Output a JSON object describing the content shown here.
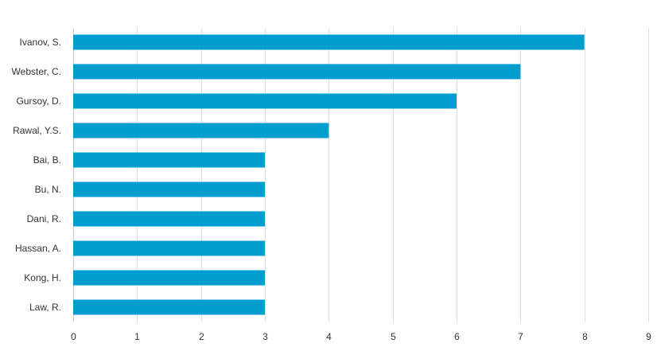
{
  "chart_data": {
    "type": "bar",
    "orientation": "horizontal",
    "title": "",
    "xlabel": "",
    "ylabel": "",
    "categories": [
      "Ivanov, S.",
      "Webster, C.",
      "Gursoy, D.",
      "Rawal, Y.S.",
      "Bai, B.",
      "Bu, N.",
      "Dani, R.",
      "Hassan, A.",
      "Kong, H.",
      "Law, R."
    ],
    "values": [
      8,
      7,
      6,
      4,
      3,
      3,
      3,
      3,
      3,
      3
    ],
    "xlim": [
      0,
      9
    ],
    "xticks": [
      "0",
      "1",
      "2",
      "3",
      "4",
      "5",
      "6",
      "7",
      "8",
      "9"
    ],
    "grid": true,
    "legend": "none",
    "bar_color": "#009ecf"
  }
}
